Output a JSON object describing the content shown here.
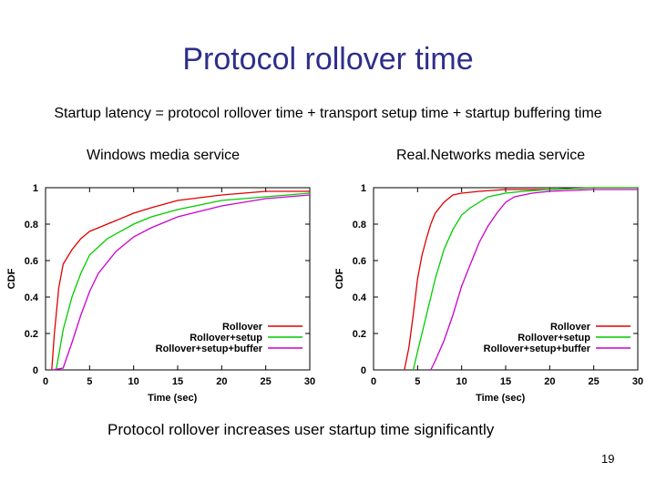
{
  "slide": {
    "title": "Protocol rollover time",
    "formula": "Startup latency = protocol  rollover time + transport setup time + startup buffering time",
    "left_subtitle": "Windows media  service",
    "right_subtitle": "Real.Networks media  service",
    "conclusion": "Protocol rollover increases user startup time significantly",
    "page_number": "19"
  },
  "colors": {
    "title": "#2e2e8a",
    "Rollover": "#e00000",
    "Rollover+setup": "#00cc00",
    "Rollover+setup+buffer": "#cc00cc"
  },
  "chart_data": [
    {
      "type": "line",
      "title": "",
      "xlabel": "Time (sec)",
      "ylabel": "CDF",
      "xlim": [
        0,
        30
      ],
      "ylim": [
        0,
        1
      ],
      "xticks": [
        "0",
        "5",
        "10",
        "15",
        "20",
        "25",
        "30"
      ],
      "yticks": [
        "0",
        "0.2",
        "0.4",
        "0.6",
        "0.8",
        "1"
      ],
      "legend_position": "bottom-right",
      "grid": false,
      "series": [
        {
          "name": "Rollover",
          "x": [
            0.7,
            1,
            1.5,
            2,
            3,
            4,
            5,
            7,
            10,
            12,
            15,
            20,
            25,
            30
          ],
          "y": [
            0,
            0.2,
            0.45,
            0.58,
            0.66,
            0.72,
            0.76,
            0.8,
            0.86,
            0.89,
            0.93,
            0.96,
            0.98,
            0.98
          ]
        },
        {
          "name": "Rollover+setup",
          "x": [
            1.2,
            1.5,
            2,
            3,
            4,
            5,
            7,
            10,
            12,
            15,
            20,
            25,
            30
          ],
          "y": [
            0,
            0.08,
            0.22,
            0.4,
            0.53,
            0.63,
            0.72,
            0.8,
            0.84,
            0.88,
            0.93,
            0.95,
            0.97
          ]
        },
        {
          "name": "Rollover+setup+buffer",
          "x": [
            0.8,
            2,
            3,
            4,
            5,
            6,
            8,
            10,
            12,
            15,
            20,
            25,
            30
          ],
          "y": [
            0,
            0.01,
            0.15,
            0.3,
            0.43,
            0.53,
            0.65,
            0.73,
            0.78,
            0.84,
            0.9,
            0.94,
            0.96
          ]
        }
      ]
    },
    {
      "type": "line",
      "title": "",
      "xlabel": "Time (sec)",
      "ylabel": "CDF",
      "xlim": [
        0,
        30
      ],
      "ylim": [
        0,
        1
      ],
      "xticks": [
        "0",
        "5",
        "10",
        "15",
        "20",
        "25",
        "30"
      ],
      "yticks": [
        "0",
        "0.2",
        "0.4",
        "0.6",
        "0.8",
        "1"
      ],
      "legend_position": "bottom-right",
      "grid": false,
      "series": [
        {
          "name": "Rollover",
          "x": [
            3.5,
            4,
            4.5,
            5,
            5.5,
            6,
            6.5,
            7,
            8,
            9,
            10,
            12,
            15,
            20,
            25,
            30
          ],
          "y": [
            0,
            0.12,
            0.3,
            0.5,
            0.63,
            0.72,
            0.8,
            0.86,
            0.92,
            0.96,
            0.97,
            0.98,
            0.99,
            0.99,
            1,
            1
          ]
        },
        {
          "name": "Rollover+setup",
          "x": [
            4.5,
            5,
            6,
            7,
            8,
            9,
            10,
            11,
            12,
            13,
            15,
            17,
            20,
            25,
            30
          ],
          "y": [
            0,
            0.1,
            0.3,
            0.5,
            0.66,
            0.77,
            0.85,
            0.89,
            0.92,
            0.95,
            0.97,
            0.98,
            0.99,
            1,
            1
          ]
        },
        {
          "name": "Rollover+setup+buffer",
          "x": [
            6.5,
            7,
            8,
            9,
            10,
            11,
            12,
            13,
            14,
            15,
            16,
            18,
            20,
            25,
            30
          ],
          "y": [
            0,
            0.05,
            0.16,
            0.3,
            0.46,
            0.58,
            0.7,
            0.79,
            0.86,
            0.92,
            0.95,
            0.97,
            0.98,
            0.99,
            0.99
          ]
        }
      ]
    }
  ]
}
